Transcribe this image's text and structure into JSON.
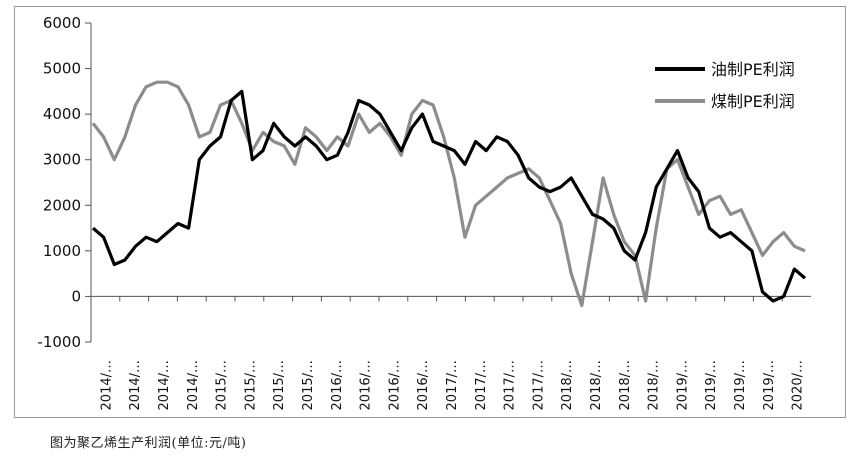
{
  "chart_data": {
    "type": "line",
    "title": "",
    "xlabel": "",
    "ylabel": "",
    "ylim": [
      -1000,
      6000
    ],
    "yticks": [
      6000,
      5000,
      4000,
      3000,
      2000,
      1000,
      0,
      -1000
    ],
    "xtick_labels": [
      "2014/…",
      "2014/…",
      "2014/…",
      "2014/…",
      "2015/…",
      "2015/…",
      "2015/…",
      "2015/…",
      "2016/…",
      "2016/…",
      "2016/…",
      "2016/…",
      "2017/…",
      "2017/…",
      "2017/…",
      "2017/…",
      "2018/…",
      "2018/…",
      "2018/…",
      "2018/…",
      "2019/…",
      "2019/…",
      "2019/…",
      "2019/…",
      "2020/…"
    ],
    "legend_position": "top-right",
    "grid": false,
    "series": [
      {
        "name": "油制PE利润",
        "color": "#000000",
        "values": [
          1500,
          1300,
          700,
          800,
          1100,
          1300,
          1200,
          1400,
          1600,
          1500,
          3000,
          3300,
          3500,
          4300,
          4500,
          3000,
          3200,
          3800,
          3500,
          3300,
          3500,
          3300,
          3000,
          3100,
          3600,
          4300,
          4200,
          4000,
          3600,
          3200,
          3700,
          4000,
          3400,
          3300,
          3200,
          2900,
          3400,
          3200,
          3500,
          3400,
          3100,
          2600,
          2400,
          2300,
          2400,
          2600,
          2200,
          1800,
          1700,
          1500,
          1000,
          800,
          1400,
          2400,
          2800,
          3200,
          2600,
          2300,
          1500,
          1300,
          1400,
          1200,
          1000,
          100,
          -100,
          0,
          600,
          400
        ]
      },
      {
        "name": "煤制PE利润",
        "color": "#8c8c8c",
        "values": [
          3800,
          3500,
          3000,
          3500,
          4200,
          4600,
          4700,
          4700,
          4600,
          4200,
          3500,
          3600,
          4200,
          4300,
          3800,
          3200,
          3600,
          3400,
          3300,
          2900,
          3700,
          3500,
          3200,
          3500,
          3300,
          4000,
          3600,
          3800,
          3500,
          3100,
          4000,
          4300,
          4200,
          3500,
          2600,
          1300,
          2000,
          2200,
          2400,
          2600,
          2700,
          2800,
          2600,
          2100,
          1600,
          500,
          -200,
          1200,
          2600,
          1800,
          1200,
          900,
          -100,
          1500,
          2800,
          3000,
          2400,
          1800,
          2100,
          2200,
          1800,
          1900,
          1400,
          900,
          1200,
          1400,
          1100,
          1000
        ]
      }
    ]
  },
  "caption": "图为聚乙烯生产利润(单位:元/吨)"
}
